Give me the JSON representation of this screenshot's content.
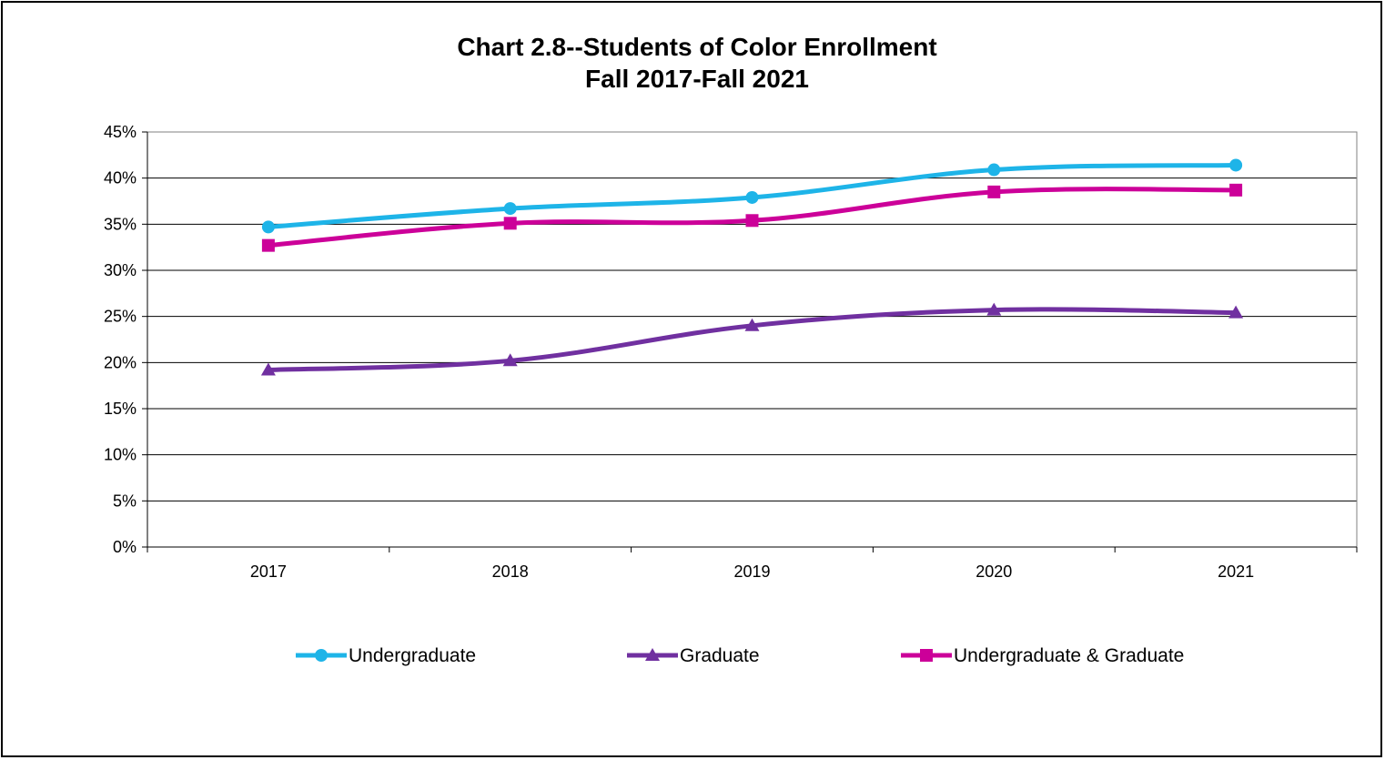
{
  "chart_data": {
    "type": "line",
    "title": "Chart 2.8--Students of Color Enrollment",
    "subtitle": "Fall 2017-Fall 2021",
    "categories": [
      "2017",
      "2018",
      "2019",
      "2020",
      "2021"
    ],
    "y_ticks": [
      "0%",
      "5%",
      "10%",
      "15%",
      "20%",
      "25%",
      "30%",
      "35%",
      "40%",
      "45%"
    ],
    "ylim": [
      0,
      45
    ],
    "y_unit": "%",
    "grid": "horizontal",
    "legend_position": "bottom",
    "series": [
      {
        "name": "Undergraduate",
        "color": "#1EB4E8",
        "marker": "circle",
        "values": [
          34.7,
          36.7,
          37.9,
          40.9,
          41.4
        ]
      },
      {
        "name": "Graduate",
        "color": "#7030A0",
        "marker": "triangle",
        "values": [
          19.2,
          20.2,
          24.0,
          25.7,
          25.4
        ]
      },
      {
        "name": "Undergraduate & Graduate",
        "color": "#CC0099",
        "marker": "square",
        "values": [
          32.7,
          35.1,
          35.4,
          38.5,
          38.7
        ]
      }
    ]
  }
}
